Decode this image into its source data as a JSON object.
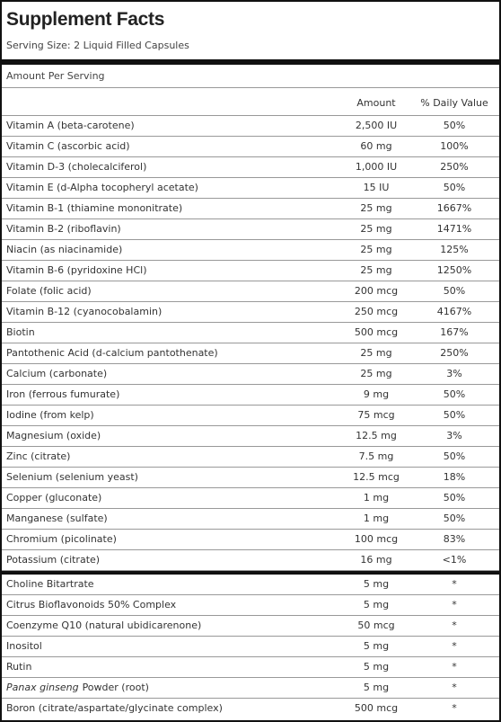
{
  "header": {
    "title": "Supplement Facts",
    "serving_size": "Serving Size: 2 Liquid Filled Capsules"
  },
  "amount_per_serving": "Amount Per Serving",
  "table": {
    "columns": [
      "Amount",
      "% Daily Value"
    ],
    "rows": [
      [
        "Vitamin A (beta-carotene)",
        "2,500 IU",
        "50%"
      ],
      [
        "Vitamin C (ascorbic acid)",
        "60 mg",
        "100%"
      ],
      [
        "Vitamin D-3 (cholecalciferol)",
        "1,000 IU",
        "250%"
      ],
      [
        "Vitamin E (d-Alpha tocopheryl acetate)",
        "15 IU",
        "50%"
      ],
      [
        "Vitamin B-1 (thiamine mononitrate)",
        "25 mg",
        "1667%"
      ],
      [
        "Vitamin B-2 (riboflavin)",
        "25 mg",
        "1471%"
      ],
      [
        "Niacin (as niacinamide)",
        "25 mg",
        "125%"
      ],
      [
        "Vitamin B-6 (pyridoxine HCl)",
        "25 mg",
        "1250%"
      ],
      [
        "Folate (folic acid)",
        "200 mcg",
        "50%"
      ],
      [
        "Vitamin B-12 (cyanocobalamin)",
        "250 mcg",
        "4167%"
      ],
      [
        "Biotin",
        "500 mcg",
        "167%"
      ],
      [
        "Pantothenic Acid (d-calcium pantothenate)",
        "25 mg",
        "250%"
      ],
      [
        "Calcium (carbonate)",
        "25 mg",
        "3%"
      ],
      [
        "Iron (ferrous fumurate)",
        "9 mg",
        "50%"
      ],
      [
        "Iodine (from kelp)",
        "75 mcg",
        "50%"
      ],
      [
        "Magnesium (oxide)",
        "12.5 mg",
        "3%"
      ],
      [
        "Zinc (citrate)",
        "7.5 mg",
        "50%"
      ],
      [
        "Selenium (selenium yeast)",
        "12.5 mcg",
        "18%"
      ],
      [
        "Copper (gluconate)",
        "1 mg",
        "50%"
      ],
      [
        "Manganese (sulfate)",
        "1 mg",
        "50%"
      ],
      [
        "Chromium (picolinate)",
        "100 mcg",
        "83%"
      ],
      [
        "Potassium (citrate)",
        "16 mg",
        "<1%"
      ]
    ],
    "other_rows": [
      [
        "Choline Bitartrate",
        "5 mg",
        "*"
      ],
      [
        "Citrus Bioflavonoids 50% Complex",
        "5 mg",
        "*"
      ],
      [
        "Coenzyme Q10 (natural ubidicarenone)",
        "50 mcg",
        "*"
      ],
      [
        "Inositol",
        "5 mg",
        "*"
      ],
      [
        "Rutin",
        "5 mg",
        "*"
      ],
      [
        [
          "Panax ginseng",
          "Powder (root)"
        ],
        "5 mg",
        "*"
      ],
      [
        "Boron (citrate/aspartate/glycinate complex)",
        "500 mcg",
        "*"
      ]
    ]
  }
}
